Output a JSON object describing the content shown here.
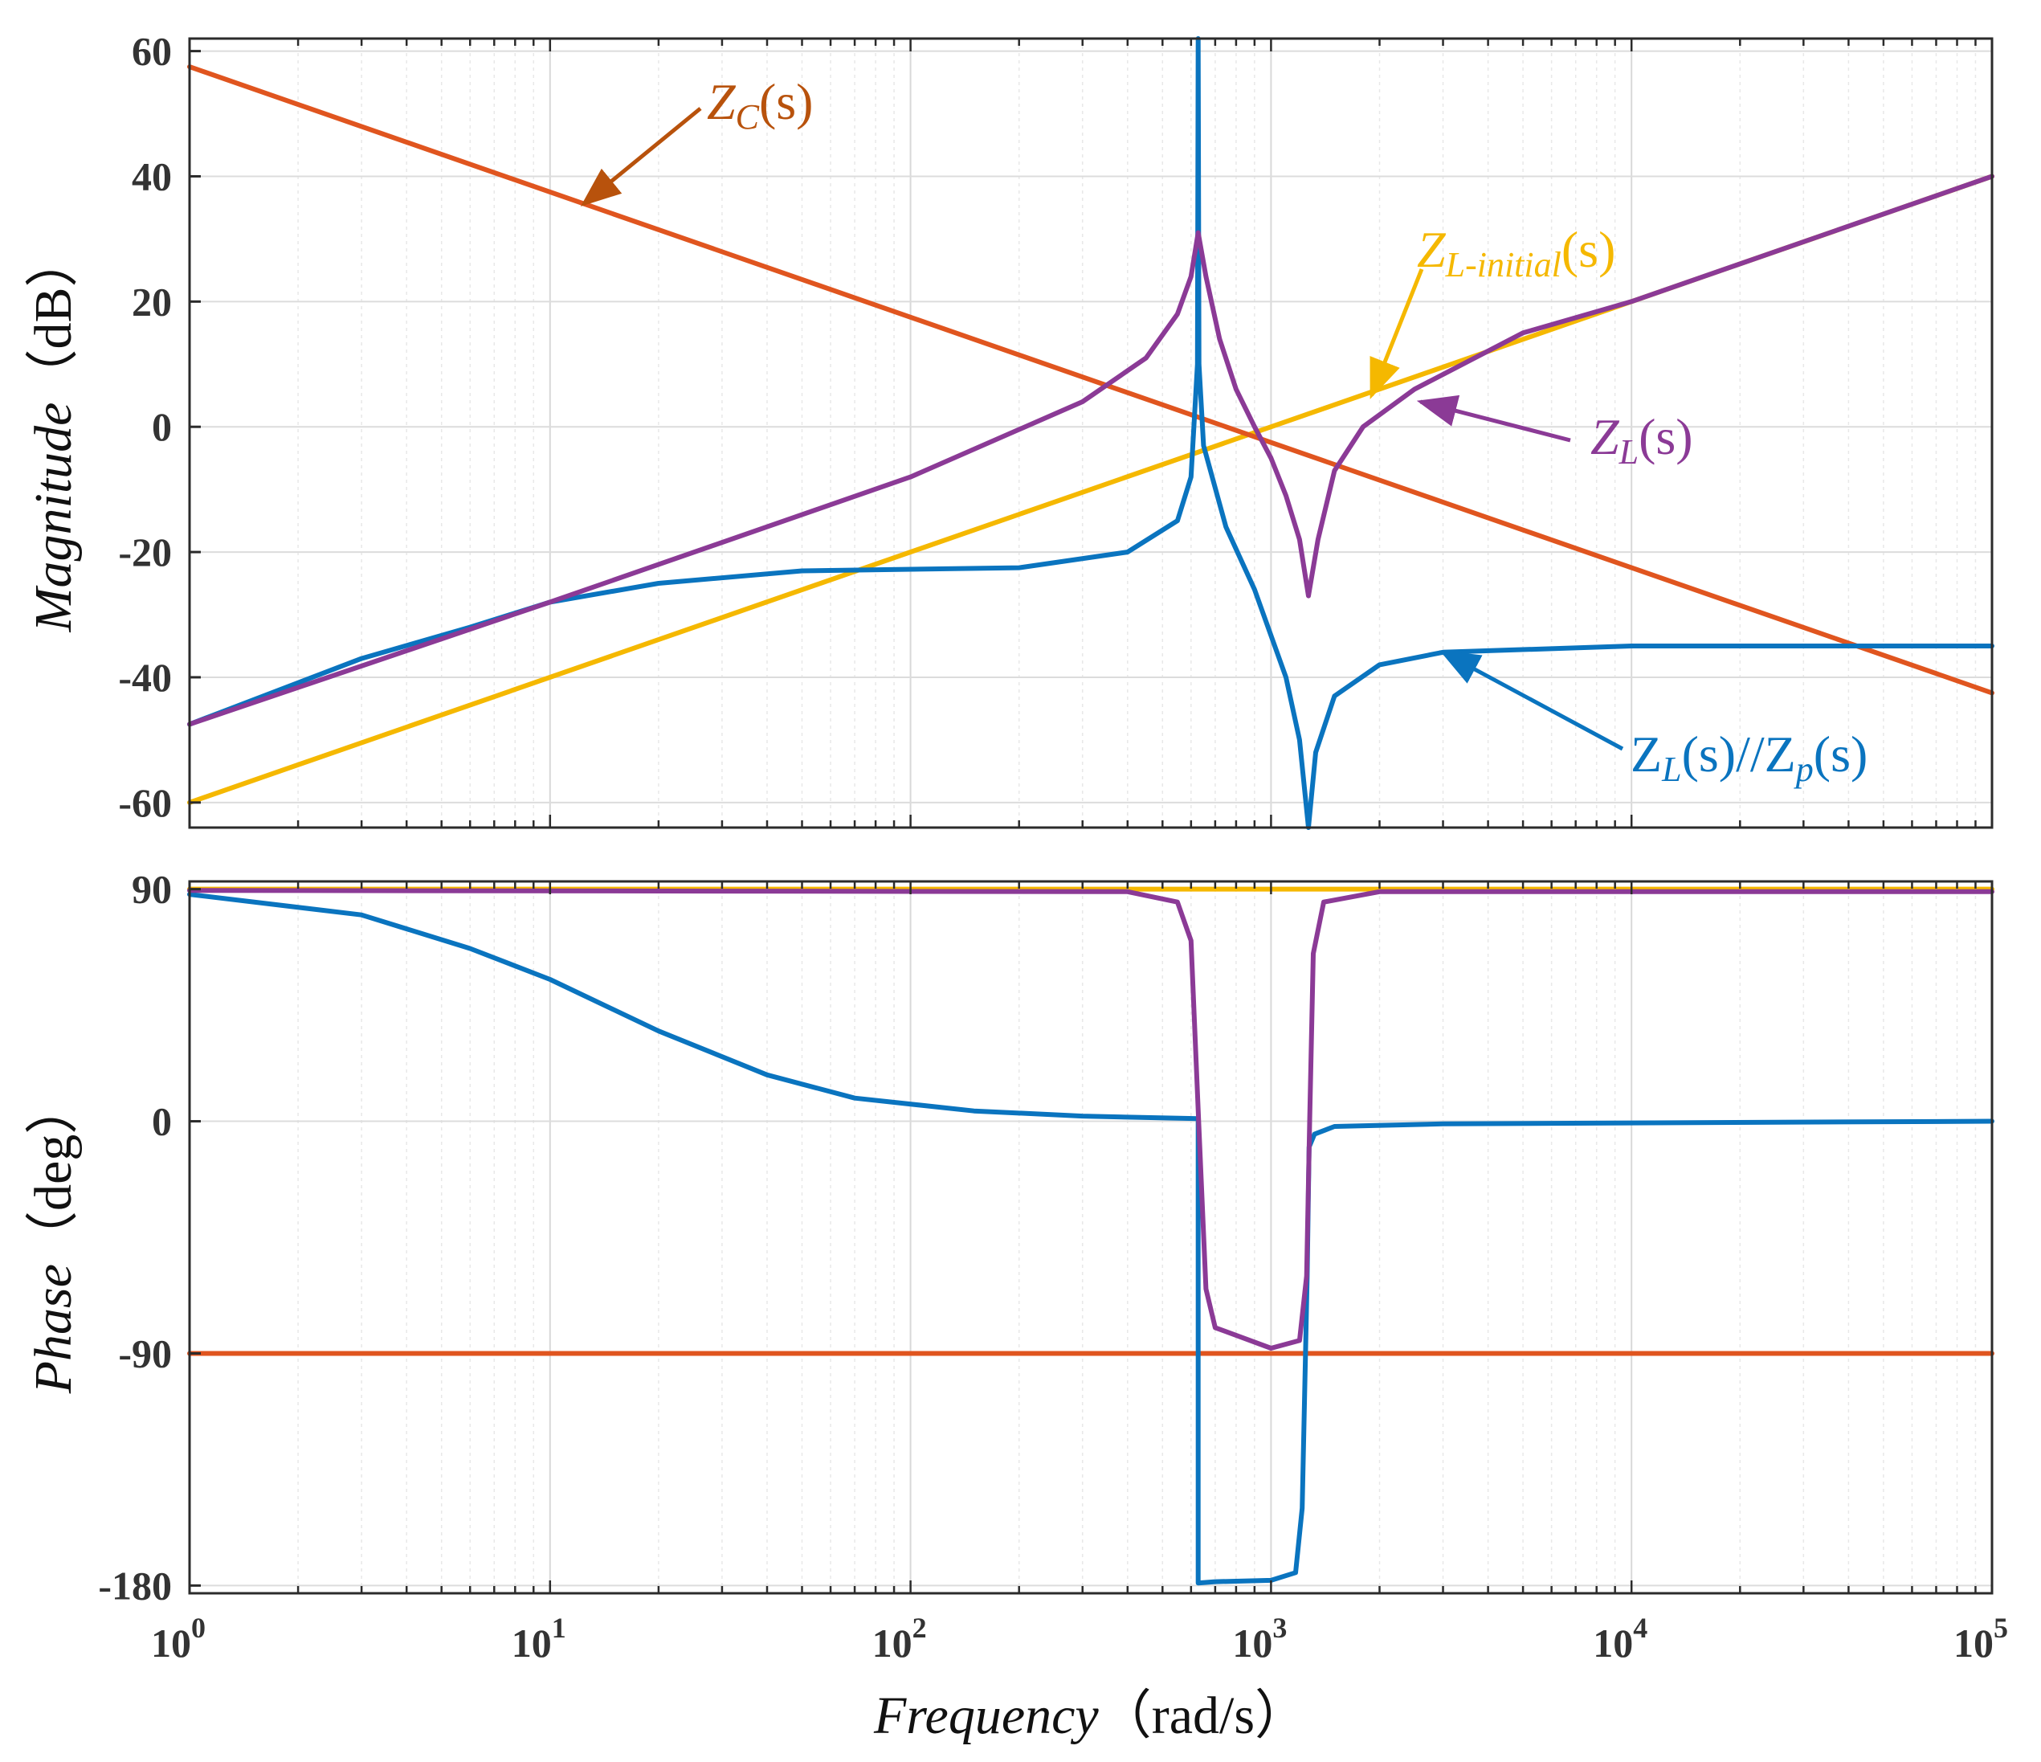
{
  "chart_data": {
    "type": "line",
    "subtype": "bode",
    "x_scale": "log",
    "xlim": [
      1,
      100000
    ],
    "x_ticks": [
      {
        "base": "10",
        "exp": "0"
      },
      {
        "base": "10",
        "exp": "1"
      },
      {
        "base": "10",
        "exp": "2"
      },
      {
        "base": "10",
        "exp": "3"
      },
      {
        "base": "10",
        "exp": "4"
      },
      {
        "base": "10",
        "exp": "5"
      }
    ],
    "xlabel": {
      "italic": "Frequency",
      "rest": "（rad/s）"
    },
    "colors": {
      "zc": "#e0551f",
      "zl_initial": "#f5b800",
      "zl": "#8b3a96",
      "zlp": "#0a74bf",
      "arrow_zc": "#b8520c"
    },
    "panels": [
      {
        "name": "magnitude",
        "ylabel": {
          "italic": "Magnitude",
          "rest": "（dB）"
        },
        "ylim": [
          -64,
          62
        ],
        "y_ticks": [
          "60",
          "40",
          "20",
          "0",
          "-20",
          "-40",
          "-60"
        ],
        "grid": true
      },
      {
        "name": "phase",
        "ylabel": {
          "italic": "Phase",
          "rest": "（deg）"
        },
        "ylim": [
          -183,
          93
        ],
        "y_ticks": [
          "90",
          "0",
          "-90",
          "-180"
        ],
        "grid": true
      }
    ],
    "series": [
      {
        "key": "zc",
        "name": "Z_C(s)",
        "magnitude": [
          [
            1,
            57.5
          ],
          [
            100000,
            -42.5
          ]
        ],
        "phase": [
          [
            1,
            -90
          ],
          [
            100000,
            -90
          ]
        ]
      },
      {
        "key": "zl_initial",
        "name": "Z_L-initial(s)",
        "magnitude": [
          [
            1,
            -60
          ],
          [
            100000,
            40
          ]
        ],
        "phase": [
          [
            1,
            90
          ],
          [
            100000,
            90
          ]
        ]
      },
      {
        "key": "zl",
        "name": "Z_L(s)",
        "magnitude": [
          [
            1,
            -47.5
          ],
          [
            10,
            -28
          ],
          [
            100,
            -8
          ],
          [
            300,
            4
          ],
          [
            450,
            11
          ],
          [
            550,
            18
          ],
          [
            600,
            24
          ],
          [
            628,
            31
          ],
          [
            660,
            24
          ],
          [
            720,
            14
          ],
          [
            800,
            6
          ],
          [
            900,
            0
          ],
          [
            1000,
            -5
          ],
          [
            1100,
            -11
          ],
          [
            1200,
            -18
          ],
          [
            1270,
            -27
          ],
          [
            1350,
            -18
          ],
          [
            1500,
            -7
          ],
          [
            1800,
            0
          ],
          [
            2500,
            6
          ],
          [
            5000,
            15
          ],
          [
            10000,
            20
          ],
          [
            100000,
            40
          ]
        ],
        "phase": [
          [
            1,
            89.5
          ],
          [
            400,
            89
          ],
          [
            550,
            85
          ],
          [
            600,
            70
          ],
          [
            630,
            0
          ],
          [
            660,
            -65
          ],
          [
            700,
            -80
          ],
          [
            1000,
            -88
          ],
          [
            1200,
            -85
          ],
          [
            1255,
            -60
          ],
          [
            1280,
            0
          ],
          [
            1310,
            65
          ],
          [
            1400,
            85
          ],
          [
            2000,
            89
          ],
          [
            100000,
            89
          ]
        ]
      },
      {
        "key": "zlp",
        "name": "Z_L(s)//Z_p(s)",
        "magnitude": [
          [
            1,
            -47.5
          ],
          [
            3,
            -37
          ],
          [
            6,
            -32
          ],
          [
            10,
            -28
          ],
          [
            20,
            -25
          ],
          [
            50,
            -23
          ],
          [
            200,
            -22.5
          ],
          [
            400,
            -20
          ],
          [
            550,
            -15
          ],
          [
            600,
            -8
          ],
          [
            625,
            10
          ],
          [
            628,
            62
          ],
          [
            631,
            10
          ],
          [
            650,
            -3
          ],
          [
            750,
            -16
          ],
          [
            900,
            -26
          ],
          [
            1100,
            -40
          ],
          [
            1200,
            -50
          ],
          [
            1270,
            -64
          ],
          [
            1330,
            -52
          ],
          [
            1500,
            -43
          ],
          [
            2000,
            -38
          ],
          [
            3000,
            -36
          ],
          [
            10000,
            -35
          ],
          [
            100000,
            -35
          ]
        ],
        "phase": [
          [
            1,
            88
          ],
          [
            3,
            80
          ],
          [
            6,
            67
          ],
          [
            10,
            55
          ],
          [
            20,
            35
          ],
          [
            40,
            18
          ],
          [
            70,
            9
          ],
          [
            150,
            4
          ],
          [
            300,
            2
          ],
          [
            628,
            1
          ],
          [
            628,
            -179
          ],
          [
            700,
            -178.5
          ],
          [
            1000,
            -178
          ],
          [
            1170,
            -175
          ],
          [
            1220,
            -150
          ],
          [
            1260,
            -60
          ],
          [
            1275,
            -10
          ],
          [
            1320,
            -5
          ],
          [
            1500,
            -2
          ],
          [
            3000,
            -1
          ],
          [
            100000,
            0
          ]
        ]
      }
    ],
    "annotations": [
      {
        "key": "zc",
        "base": "Z",
        "sub": "C",
        "tail": "(s)",
        "arrow_to": [
          12.4,
          35.6
        ]
      },
      {
        "key": "zl_initial",
        "base": "Z",
        "sub": "L-initial",
        "tail": "(s)",
        "arrow_to": [
          1900,
          5
        ]
      },
      {
        "key": "zl",
        "base": "Z",
        "sub": "L",
        "tail": "(s)",
        "arrow_to": [
          2600,
          4
        ]
      },
      {
        "key": "zlp",
        "base": "Z",
        "sub": "L",
        "tail": "(s)//",
        "base2": "Z",
        "sub2": "p",
        "tail2": "(s)",
        "arrow_to": [
          3000,
          -36
        ]
      }
    ]
  }
}
